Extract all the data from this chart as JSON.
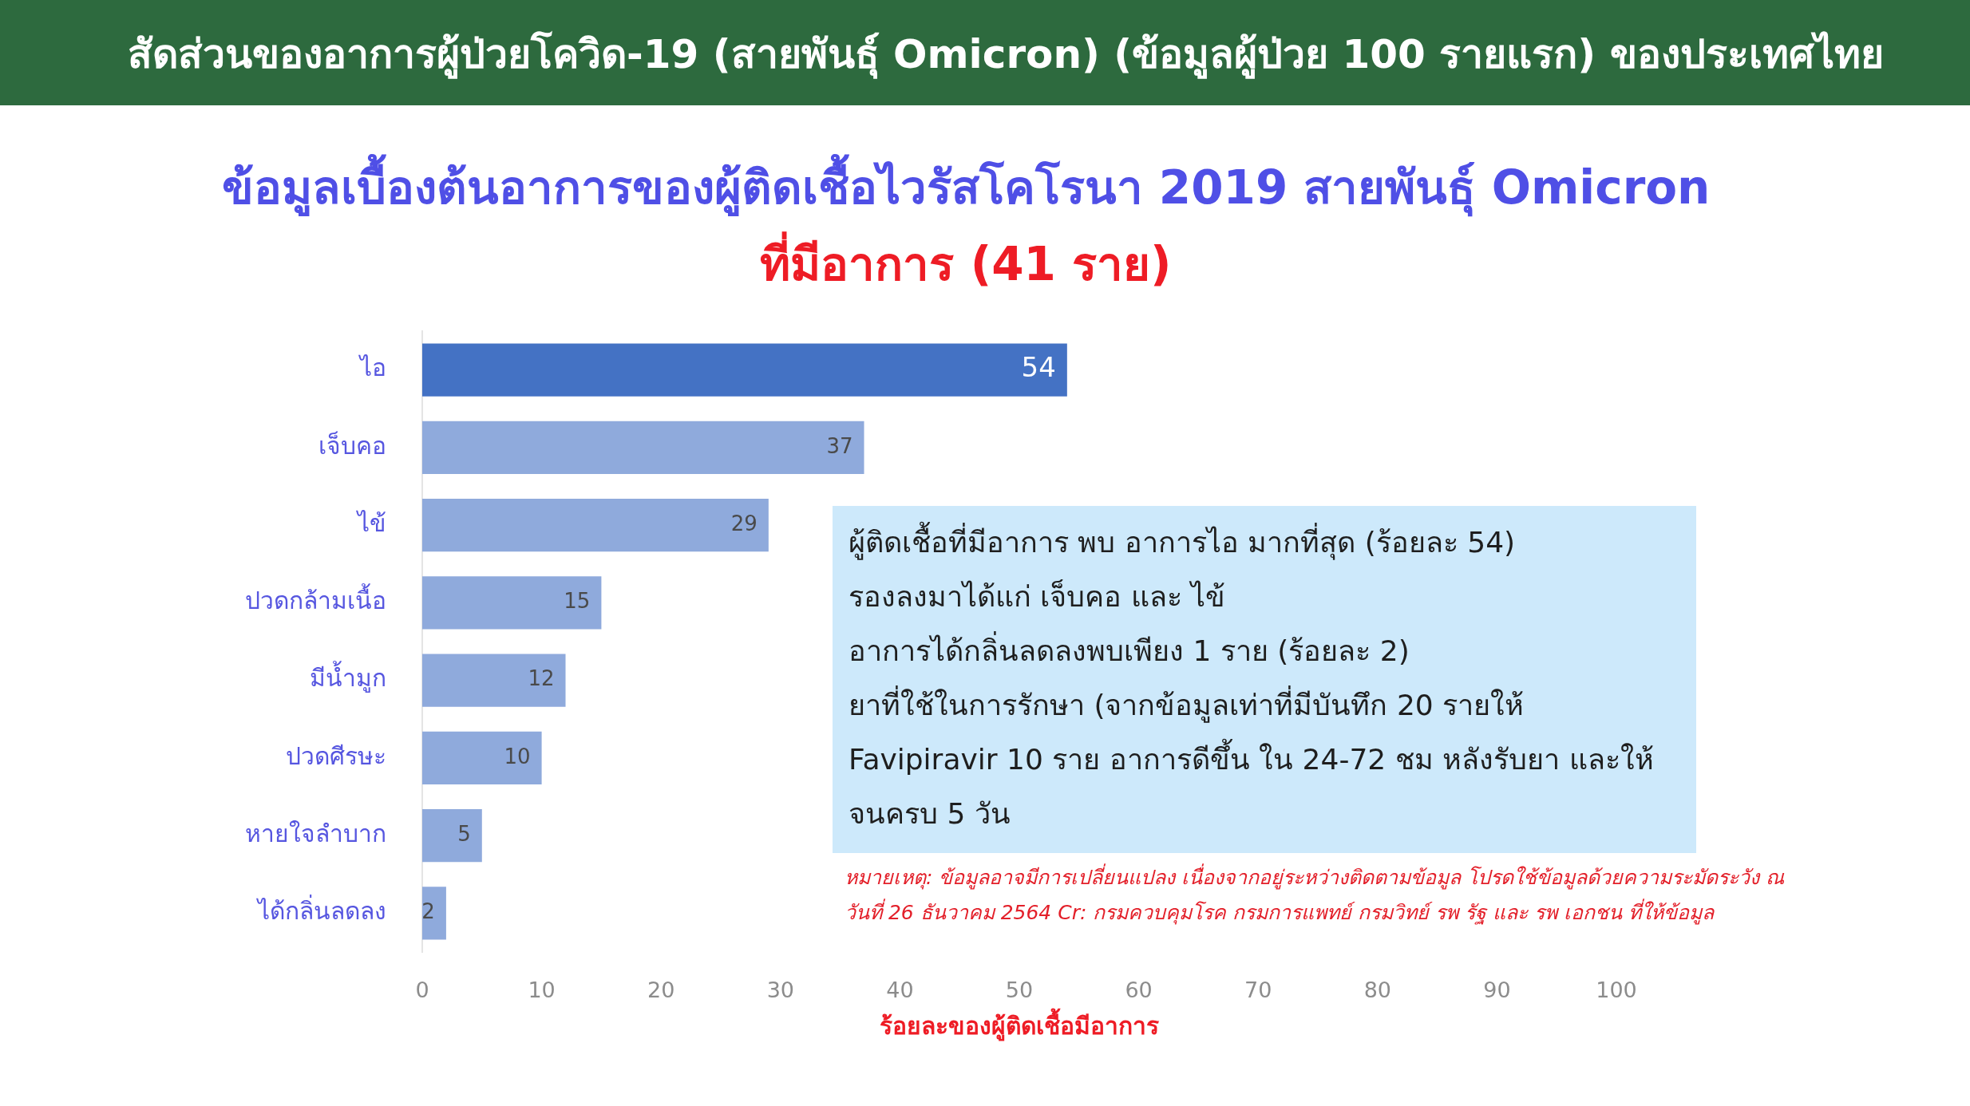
{
  "chart_data": {
    "type": "bar",
    "orientation": "horizontal",
    "title": "สัดส่วนของอาการผู้ป่วยโควิด-19 (สายพันธุ์ Omicron) (ข้อมูลผู้ป่วย 100 รายแรก) ของประเทศไทย",
    "subtitle": "ข้อมูลเบื้องต้นอาการของผู้ติดเชื้อไวรัสโคโรนา 2019 สายพันธุ์ Omicron\nที่มีอาการ (41 ราย)",
    "xlabel": "ร้อยละของผู้ติดเชื้อมีอาการ",
    "categories": [
      "ไอ",
      "เจ็บคอ",
      "ไข้",
      "ปวดกล้ามเนื้อ",
      "มีน้ำมูก",
      "ปวดศีรษะ",
      "หายใจลำบาก",
      "ได้กลิ่นลดลง"
    ],
    "values": [
      54,
      37,
      29,
      15,
      12,
      10,
      5,
      2
    ],
    "colors": [
      "#4472c4",
      "#8faadc",
      "#8faadc",
      "#8faadc",
      "#8faadc",
      "#8faadc",
      "#8faadc",
      "#8faadc"
    ],
    "xlim": [
      0,
      100
    ],
    "xticks": [
      0,
      10,
      20,
      30,
      40,
      50,
      60,
      70,
      80,
      90,
      100
    ],
    "data_labels": true,
    "annotations": [
      "ผู้ติดเชื้อที่มีอาการ พบ อาการไอ มากที่สุด (ร้อยละ 54)",
      "รองลงมาได้แก่ เจ็บคอ และ ไข้",
      "อาการได้กลิ่นลดลงพบเพียง 1 ราย (ร้อยละ 2)",
      "ยาที่ใช้ในการรักษา (จากข้อมูลเท่าที่มีบันทึก 20 รายให้ Favipiravir 10 ราย อาการดีขึ้น ใน 24-72 ชม หลังรับยา และให้จนครบ 5 วัน",
      "หมายเหตุ: ข้อมูลอาจมีการเปลี่ยนแปลง เนื่องจากอยู่ระหว่างติดตามข้อมูล โปรดใช้ข้อมูลด้วยความระมัดระวัง ณ วันที่ 26 ธันวาคม 2564 Cr: กรมควบคุมโรค กรมการแพทย์ กรมวิทย์ รพ รัฐ และ รพ เอกชน ที่ให้ข้อมูล"
    ]
  }
}
